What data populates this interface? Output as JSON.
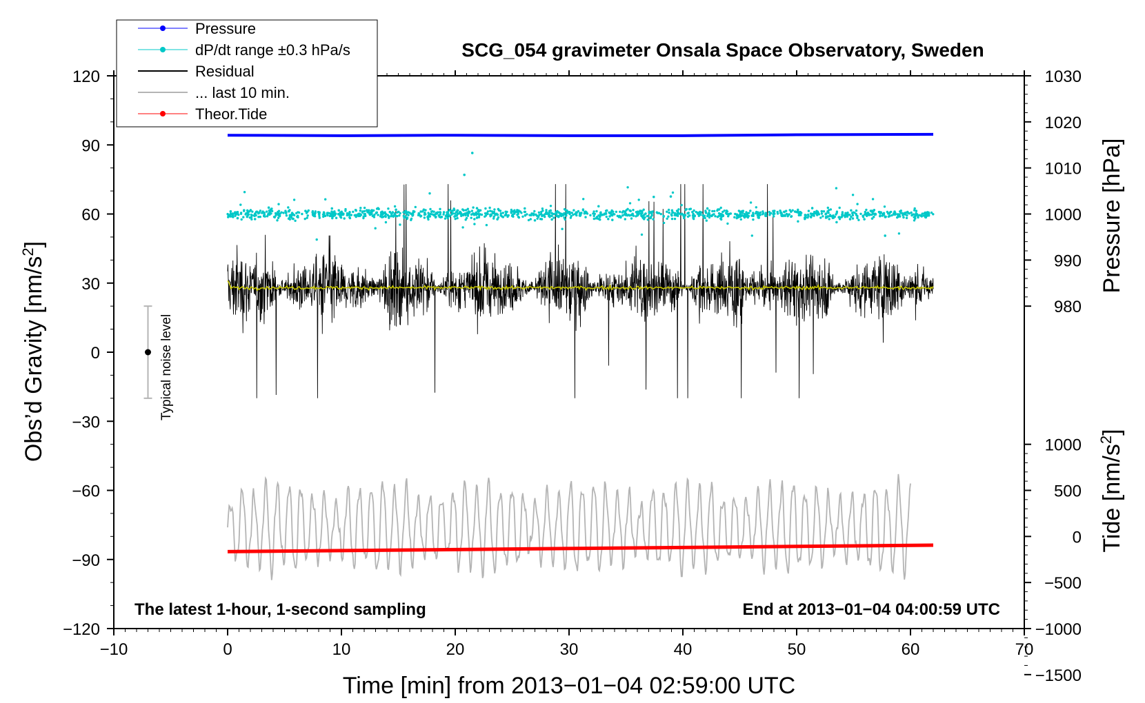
{
  "chart_data": {
    "type": "line",
    "title": "SCG_054 gravimeter Onsala Space Observatory, Sweden",
    "xlabel": "Time [min] from 2013−01−04 02:59:00 UTC",
    "ylabel_left": "Obs’d Gravity [nm/s²]",
    "ylabel_right_top": "Pressure [hPa]",
    "ylabel_right_bottom": "Tide [nm/s²]",
    "xlim": [
      -10,
      70
    ],
    "ylim": [
      -120,
      120
    ],
    "pressure_axis_range": [
      980,
      1030
    ],
    "tide_axis_range": [
      -1500,
      1000
    ],
    "x_ticks": [
      "−10",
      "0",
      "10",
      "20",
      "30",
      "40",
      "50",
      "60",
      "70"
    ],
    "y_ticks": [
      "120",
      "90",
      "60",
      "30",
      "0",
      "−30",
      "−60",
      "−90",
      "−120"
    ],
    "pressure_ticks": [
      "1030",
      "1020",
      "1010",
      "1000",
      "990",
      "980"
    ],
    "tide_ticks": [
      "1000",
      "500",
      "0",
      "−500",
      "−1000",
      "−1500"
    ],
    "note_left": "The latest 1-hour, 1-second sampling",
    "note_right": "End at 2013−01−04 04:00:59 UTC",
    "noise_label": "Typical noise level",
    "noise_bar": {
      "center": 0,
      "half_range": 20
    },
    "legend": [
      {
        "label": "Pressure",
        "color": "#0000ff",
        "style": "line-dot"
      },
      {
        "label": "dP/dt range ±0.3 hPa/s",
        "color": "#00c8c8",
        "style": "line-dot"
      },
      {
        "label": "Residual",
        "color": "#000000",
        "style": "line"
      },
      {
        "label": "... last 10 min.",
        "color": "#b4b4b4",
        "style": "line"
      },
      {
        "label": "Theor.Tide",
        "color": "#ff0000",
        "style": "line-dot"
      }
    ],
    "series": [
      {
        "name": "Pressure",
        "unit": "hPa",
        "color": "#0000ff",
        "x": [
          0,
          10,
          20,
          30,
          40,
          50,
          62
        ],
        "values": [
          1017.1,
          1017.0,
          1017.1,
          1017.0,
          1017.0,
          1017.2,
          1017.3
        ]
      },
      {
        "name": "dP/dt range",
        "unit": "nm/s² (plotted)",
        "color": "#00c8c8",
        "x_range": [
          0,
          62
        ],
        "center": 60,
        "spread": 3
      },
      {
        "name": "Residual",
        "unit": "nm/s²",
        "color": "#000000",
        "x_range": [
          0,
          62
        ],
        "center": 28,
        "envelope": [
          -20,
          73
        ]
      },
      {
        "name": "Residual (smoothed)",
        "unit": "nm/s²",
        "color": "#c8c800",
        "x_range": [
          0,
          62
        ],
        "center": 28
      },
      {
        "name": "last 10 min.",
        "unit": "nm/s²",
        "color": "#b4b4b4",
        "x_range": [
          0,
          60
        ],
        "center": -76,
        "envelope": [
          -105,
          -45
        ]
      },
      {
        "name": "Theor.Tide",
        "unit": "nm/s² (tide axis)",
        "color": "#ff0000",
        "x": [
          0,
          62
        ],
        "values": [
          -165,
          -95
        ]
      }
    ]
  }
}
